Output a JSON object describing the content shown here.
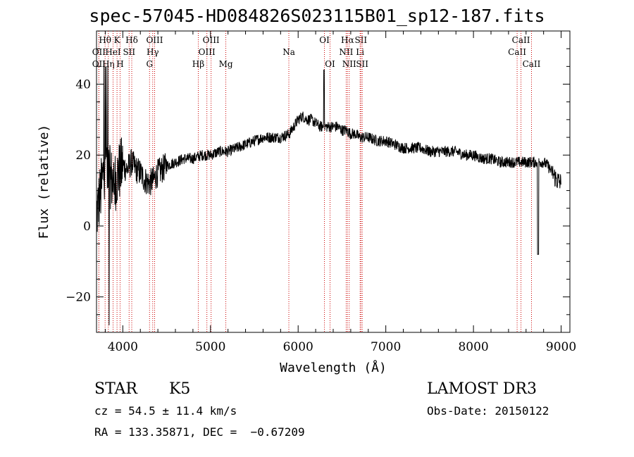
{
  "chart_data": {
    "type": "line",
    "title": "spec-57045-HD084826S023115B01_sp12-187.fits",
    "xlabel": "Wavelength (Å)",
    "ylabel": "Flux (relative)",
    "xlim": [
      3700,
      9100
    ],
    "ylim": [
      -30,
      55
    ],
    "x_ticks": [
      4000,
      5000,
      6000,
      7000,
      8000,
      9000
    ],
    "y_ticks": [
      -20,
      0,
      20,
      40
    ],
    "x_tick_labels": [
      "4000",
      "5000",
      "6000",
      "7000",
      "8000",
      "9000"
    ],
    "y_tick_labels": [
      "−20",
      "0",
      "20",
      "40"
    ],
    "series": [
      {
        "name": "flux",
        "x": [
          3700,
          3750,
          3800,
          3850,
          3900,
          3950,
          4000,
          4050,
          4100,
          4150,
          4200,
          4250,
          4300,
          4350,
          4400,
          4500,
          4600,
          4700,
          4800,
          4900,
          5000,
          5100,
          5200,
          5300,
          5400,
          5500,
          5600,
          5700,
          5800,
          5900,
          5950,
          6000,
          6050,
          6100,
          6150,
          6200,
          6250,
          6300,
          6350,
          6400,
          6450,
          6500,
          6550,
          6600,
          6650,
          6700,
          6800,
          6900,
          7000,
          7100,
          7200,
          7300,
          7400,
          7500,
          7600,
          7700,
          7800,
          7900,
          8000,
          8100,
          8200,
          8300,
          8400,
          8500,
          8600,
          8700,
          8800,
          8850,
          8900,
          8950,
          9000
        ],
        "y": [
          3,
          10,
          18,
          14,
          12,
          15,
          17,
          16,
          18,
          16,
          15,
          13,
          12,
          13,
          15,
          17,
          18,
          19,
          19,
          20,
          20,
          21,
          21,
          22,
          23,
          24,
          25,
          25,
          25,
          26,
          28,
          30,
          31,
          30,
          30,
          29,
          28,
          28,
          28,
          28,
          28,
          27,
          27,
          26,
          26,
          25,
          25,
          24,
          24,
          23,
          22,
          22,
          22,
          21,
          21,
          21,
          21,
          20,
          20,
          19,
          19,
          18,
          18,
          18,
          18,
          18,
          18,
          17,
          15,
          13,
          12
        ]
      }
    ],
    "lines": [
      {
        "name": "OII",
        "x": 3727,
        "row": 2
      },
      {
        "name": "OII",
        "x": 3727,
        "row": 3
      },
      {
        "name": "Hθ",
        "x": 3798,
        "row": 1
      },
      {
        "name": "Hη",
        "x": 3835,
        "row": 3
      },
      {
        "name": "HeI",
        "x": 3889,
        "row": 2
      },
      {
        "name": "K",
        "x": 3934,
        "row": 1
      },
      {
        "name": "H",
        "x": 3969,
        "row": 3
      },
      {
        "name": "SII",
        "x": 4072,
        "row": 2
      },
      {
        "name": "Hδ",
        "x": 4102,
        "row": 1
      },
      {
        "name": "G",
        "x": 4305,
        "row": 3
      },
      {
        "name": "Hγ",
        "x": 4341,
        "row": 2
      },
      {
        "name": "OIII",
        "x": 4363,
        "row": 1
      },
      {
        "name": "Hβ",
        "x": 4861,
        "row": 3
      },
      {
        "name": "OIII",
        "x": 4959,
        "row": 2
      },
      {
        "name": "OIII",
        "x": 5007,
        "row": 1
      },
      {
        "name": "Mg",
        "x": 5175,
        "row": 3
      },
      {
        "name": "Na",
        "x": 5894,
        "row": 2
      },
      {
        "name": "OI",
        "x": 6300,
        "row": 1
      },
      {
        "name": "OI",
        "x": 6364,
        "row": 3
      },
      {
        "name": "NII",
        "x": 6548,
        "row": 2
      },
      {
        "name": "Hα",
        "x": 6563,
        "row": 1
      },
      {
        "name": "NII",
        "x": 6583,
        "row": 3
      },
      {
        "name": "Li",
        "x": 6707,
        "row": 2
      },
      {
        "name": "SII",
        "x": 6716,
        "row": 1
      },
      {
        "name": "SII",
        "x": 6731,
        "row": 3
      },
      {
        "name": "CaII",
        "x": 8498,
        "row": 2
      },
      {
        "name": "CaII",
        "x": 8542,
        "row": 1
      },
      {
        "name": "CaII",
        "x": 8662,
        "row": 3
      }
    ]
  },
  "info": {
    "class": "STAR",
    "subclass": "K5",
    "survey": "LAMOST DR3",
    "cz": "cz = 54.5 ± 11.4 km/s",
    "obs_date": "Obs-Date: 20150122",
    "coords": "RA = 133.35871, DEC =  −0.67209"
  }
}
